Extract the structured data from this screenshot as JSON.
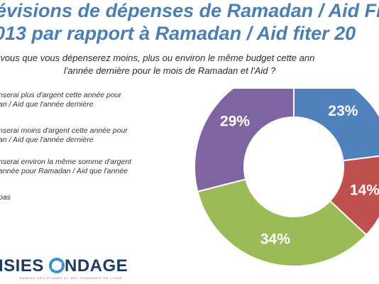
{
  "title": {
    "line1": "évisions de dépenses de Ramadan / Aid Fi",
    "line2": "013 par rapport à Ramadan / Aid fiter 20"
  },
  "question": {
    "line1": "-vous que vous dépenserez moins, plus ou environ le même budget cette ann",
    "line2": "l'année dernière pour le mois de Ramadan et l'Aid ?"
  },
  "legend": {
    "item1": "nserai plus d'argent cette année pour\nan / Aid que l'année dernière",
    "item2": "nserai moins d'argent cette année pour\nan / Aid que l'année dernière",
    "item3": "nserai environ la même somme d'argent\nannée pour Ramadan / Aid que l'année\n.",
    "item4": "pas"
  },
  "logo": {
    "part1": "ISIES",
    "part2": "NDAGE",
    "tagline": "BUREAU DES ETUDES ET DES SONDAGES EN LIGNE"
  },
  "chart_data": {
    "type": "pie",
    "donut": true,
    "slices": [
      {
        "label": "23%",
        "value": 23,
        "color": "#4f81bd"
      },
      {
        "label": "14%",
        "value": 14,
        "color": "#c0504d"
      },
      {
        "label": "34%",
        "value": 34,
        "color": "#9bbb59"
      },
      {
        "label": "29%",
        "value": 29,
        "color": "#8064a2"
      }
    ]
  }
}
